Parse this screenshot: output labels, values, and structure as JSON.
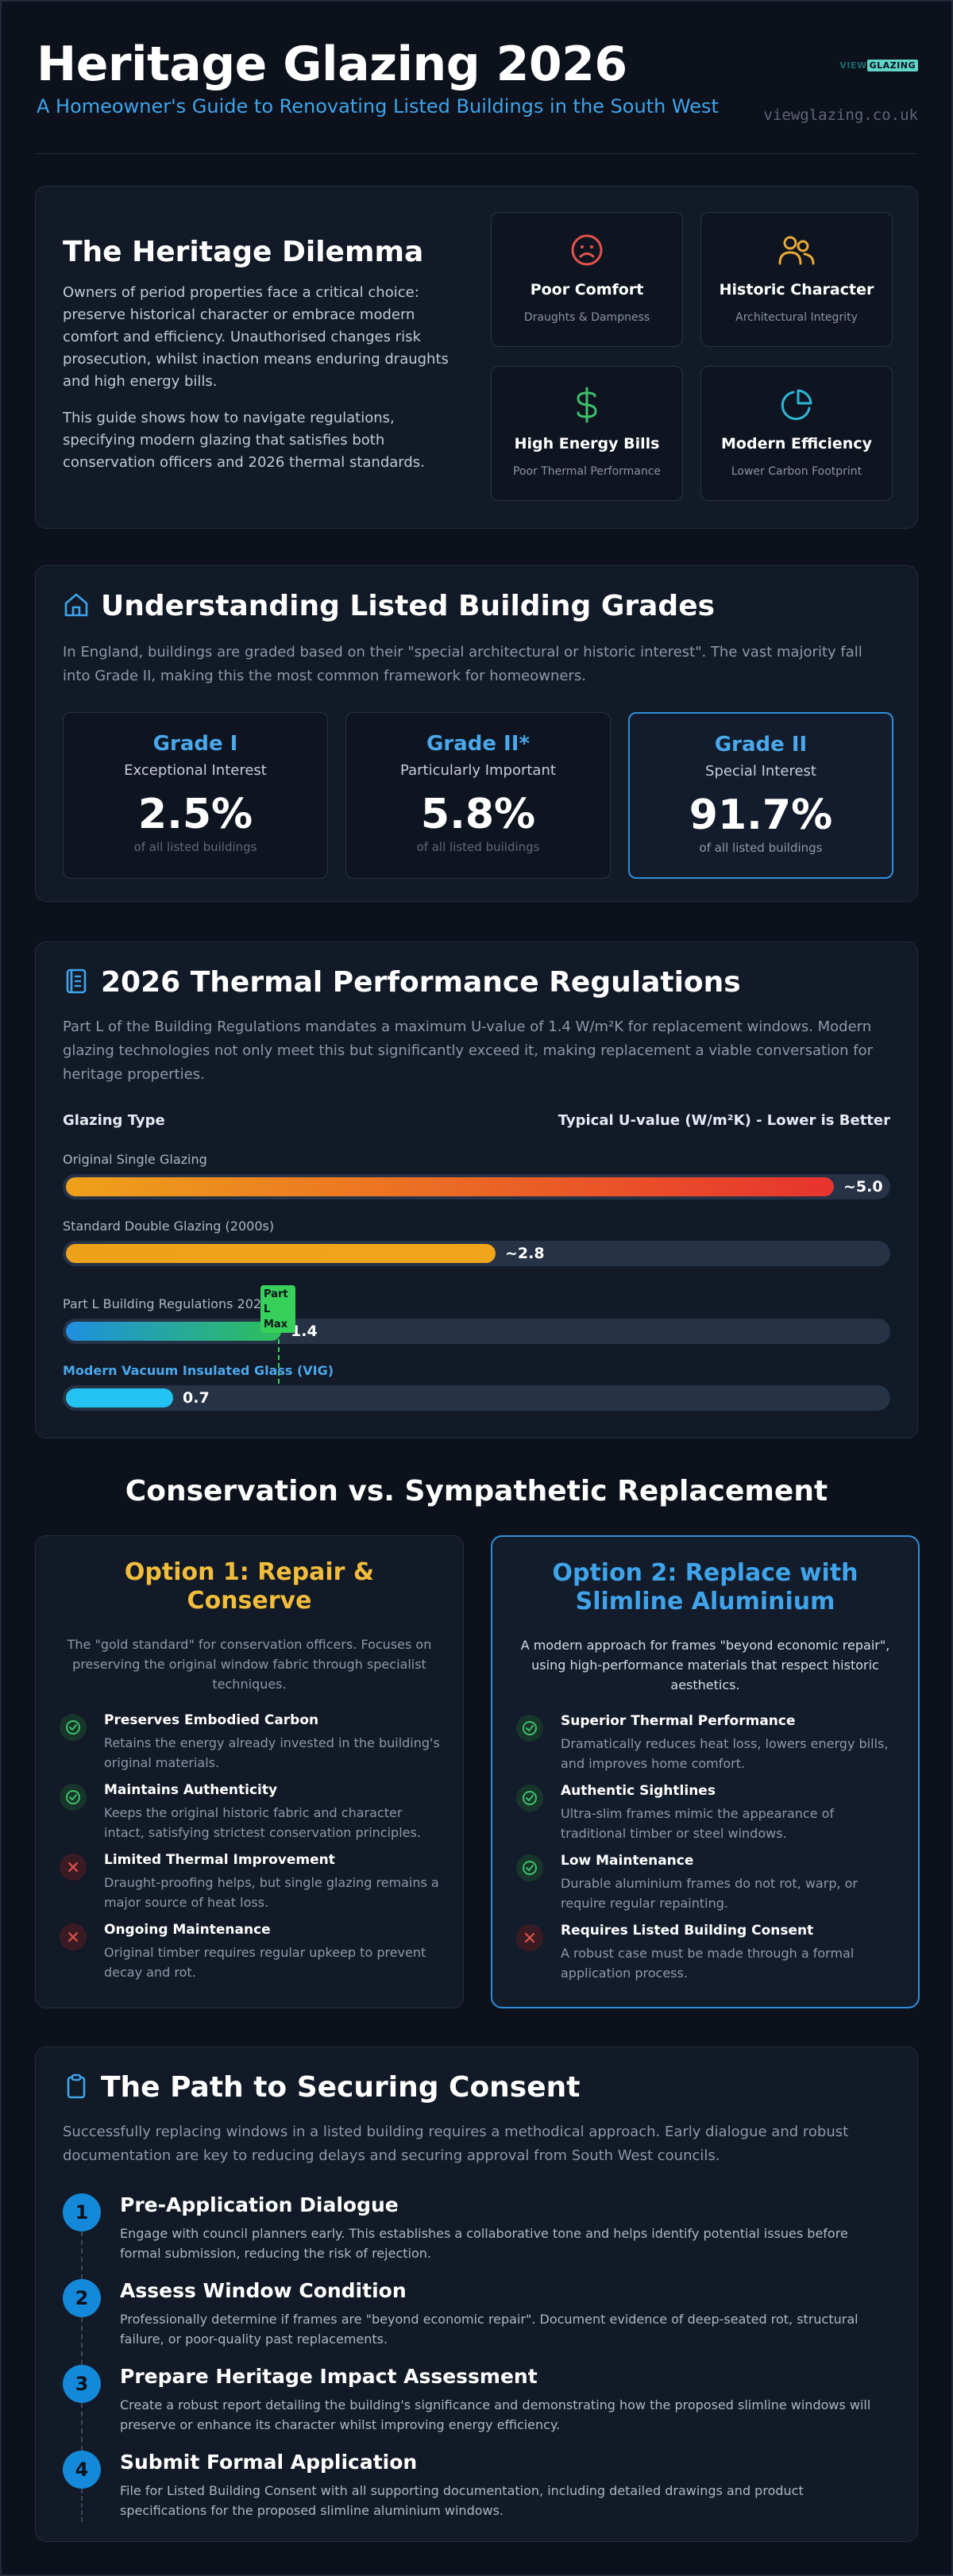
{
  "header": {
    "title": "Heritage Glazing 2026",
    "subtitle": "A Homeowner's Guide to Renovating Listed Buildings in the South West",
    "brand_logo_part1": "VIEW",
    "brand_logo_part2": "GLAZING",
    "site_url": "viewglazing.co.uk"
  },
  "dilemma": {
    "title": "The Heritage Dilemma",
    "paragraph1": "Owners of period properties face a critical choice: preserve historical character or embrace modern comfort and efficiency. Unauthorised changes risk prosecution, whilst inaction means enduring draughts and high energy bills.",
    "paragraph2": "This guide shows how to navigate regulations, specifying modern glazing that satisfies both conservation officers and 2026 thermal standards.",
    "tiles": [
      {
        "title": "Poor Comfort",
        "subtitle": "Draughts & Dampness",
        "icon": "sad-face-icon",
        "color": "#e5534b"
      },
      {
        "title": "Historic Character",
        "subtitle": "Architectural Integrity",
        "icon": "users-icon",
        "color": "#e8a93a"
      },
      {
        "title": "High Energy Bills",
        "subtitle": "Poor Thermal Performance",
        "icon": "dollar-icon",
        "color": "#3fbf6a"
      },
      {
        "title": "Modern Efficiency",
        "subtitle": "Lower Carbon Footprint",
        "icon": "pie-chart-icon",
        "color": "#2fb6d8"
      }
    ]
  },
  "grades": {
    "title": "Understanding Listed Building Grades",
    "intro": "In England, buildings are graded based on their \"special architectural or historic interest\". The vast majority fall into Grade II, making this the most common framework for homeowners.",
    "items": [
      {
        "name": "Grade I",
        "desc": "Exceptional Interest",
        "pct": "2.5%",
        "note": "of all listed buildings"
      },
      {
        "name": "Grade II*",
        "desc": "Particularly Important",
        "pct": "5.8%",
        "note": "of all listed buildings"
      },
      {
        "name": "Grade II",
        "desc": "Special Interest",
        "pct": "91.7%",
        "note": "of all listed buildings"
      }
    ]
  },
  "thermal": {
    "title": "2026 Thermal Performance Regulations",
    "intro": "Part L of the Building Regulations mandates a maximum U-value of 1.4 W/m²K for replacement windows. Modern glazing technologies not only meet this but significantly exceed it, making replacement a viable conversation for heritage properties.",
    "col_left": "Glazing Type",
    "col_right": "Typical U-value (W/m²K) - Lower is Better",
    "marker_label": "Part L Max",
    "bars": [
      {
        "label": "Original Single Glazing",
        "value": 5.0,
        "value_label": "~5.0"
      },
      {
        "label": "Standard Double Glazing (2000s)",
        "value": 2.8,
        "value_label": "~2.8"
      },
      {
        "label": "Part L Building Regulations 2026",
        "value": 1.4,
        "value_label": "1.4"
      },
      {
        "label": "Modern Vacuum Insulated Glass (VIG)",
        "value": 0.7,
        "value_label": "0.7"
      }
    ],
    "scale_max": 5.4,
    "colors": {
      "single": "#e8332e",
      "double": "#eea11a",
      "partl": "#2fbf5a",
      "vig": "#22c3f0"
    }
  },
  "conservation": {
    "title": "Conservation vs. Sympathetic Replacement",
    "option1": {
      "title": "Option 1: Repair & Conserve",
      "desc": "The \"gold standard\" for conservation officers. Focuses on preserving the original window fabric through specialist techniques.",
      "items": [
        {
          "title": "Preserves Embodied Carbon",
          "desc": "Retains the energy already invested in the building's original materials.",
          "type": "ok"
        },
        {
          "title": "Maintains Authenticity",
          "desc": "Keeps the original historic fabric and character intact, satisfying strictest conservation principles.",
          "type": "ok"
        },
        {
          "title": "Limited Thermal Improvement",
          "desc": "Draught-proofing helps, but single glazing remains a major source of heat loss.",
          "type": "no"
        },
        {
          "title": "Ongoing Maintenance",
          "desc": "Original timber requires regular upkeep to prevent decay and rot.",
          "type": "no"
        }
      ]
    },
    "option2": {
      "title": "Option 2: Replace with Slimline Aluminium",
      "desc": "A modern approach for frames \"beyond economic repair\", using high-performance materials that respect historic aesthetics.",
      "items": [
        {
          "title": "Superior Thermal Performance",
          "desc": "Dramatically reduces heat loss, lowers energy bills, and improves home comfort.",
          "type": "ok"
        },
        {
          "title": "Authentic Sightlines",
          "desc": "Ultra-slim frames mimic the appearance of traditional timber or steel windows.",
          "type": "ok"
        },
        {
          "title": "Low Maintenance",
          "desc": "Durable aluminium frames do not rot, warp, or require regular repainting.",
          "type": "ok"
        },
        {
          "title": "Requires Listed Building Consent",
          "desc": "A robust case must be made through a formal application process.",
          "type": "no"
        }
      ]
    }
  },
  "consent": {
    "title": "The Path to Securing Consent",
    "intro": "Successfully replacing windows in a listed building requires a methodical approach. Early dialogue and robust documentation are key to reducing delays and securing approval from South West councils.",
    "steps": [
      {
        "num": "1",
        "title": "Pre-Application Dialogue",
        "desc": "Engage with council planners early. This establishes a collaborative tone and helps identify potential issues before formal submission, reducing the risk of rejection."
      },
      {
        "num": "2",
        "title": "Assess Window Condition",
        "desc": "Professionally determine if frames are \"beyond economic repair\". Document evidence of deep-seated rot, structural failure, or poor-quality past replacements."
      },
      {
        "num": "3",
        "title": "Prepare Heritage Impact Assessment",
        "desc": "Create a robust report detailing the building's significance and demonstrating how the proposed slimline windows will preserve or enhance its character whilst improving energy efficiency."
      },
      {
        "num": "4",
        "title": "Submit Formal Application",
        "desc": "File for Listed Building Consent with all supporting documentation, including detailed drawings and product specifications for the proposed slimline aluminium windows."
      }
    ]
  }
}
